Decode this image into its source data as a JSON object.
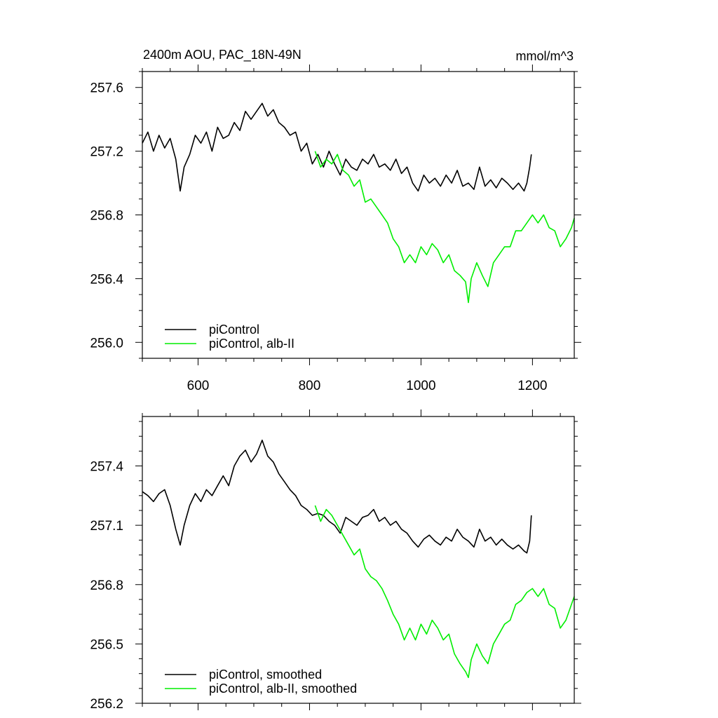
{
  "colors": {
    "control": "#000000",
    "alb": "#00ee00"
  },
  "chart_data": [
    {
      "type": "line",
      "title": "2400m AOU, PAC_18N-49N",
      "units": "mmol/m^3",
      "xlim": [
        500,
        1275
      ],
      "ylim": [
        255.9,
        257.7
      ],
      "xticks": [
        600,
        800,
        1000,
        1200
      ],
      "yticks": [
        256.0,
        256.4,
        256.8,
        257.2,
        257.6
      ],
      "ytick_labels": [
        "256.0",
        "256.4",
        "256.8",
        "257.2",
        "257.6"
      ],
      "show_xtick_labels": true,
      "legend_position": "bottom-left",
      "series": [
        {
          "name": "piControl",
          "color": "#000000",
          "x": [
            500,
            510,
            520,
            530,
            540,
            550,
            560,
            568,
            575,
            585,
            595,
            605,
            615,
            625,
            635,
            645,
            655,
            665,
            675,
            685,
            695,
            705,
            715,
            725,
            735,
            745,
            755,
            765,
            775,
            785,
            795,
            805,
            815,
            825,
            835,
            845,
            855,
            865,
            875,
            885,
            895,
            905,
            915,
            925,
            935,
            945,
            955,
            965,
            975,
            985,
            995,
            1005,
            1015,
            1025,
            1035,
            1045,
            1055,
            1065,
            1075,
            1085,
            1095,
            1105,
            1115,
            1125,
            1135,
            1145,
            1155,
            1165,
            1175,
            1185,
            1190,
            1195,
            1198
          ],
          "values": [
            257.25,
            257.32,
            257.2,
            257.3,
            257.22,
            257.28,
            257.15,
            256.95,
            257.1,
            257.18,
            257.3,
            257.25,
            257.32,
            257.2,
            257.35,
            257.28,
            257.3,
            257.38,
            257.33,
            257.45,
            257.4,
            257.45,
            257.5,
            257.42,
            257.46,
            257.38,
            257.35,
            257.3,
            257.32,
            257.2,
            257.25,
            257.12,
            257.18,
            257.1,
            257.2,
            257.12,
            257.05,
            257.15,
            257.1,
            257.08,
            257.15,
            257.12,
            257.18,
            257.1,
            257.12,
            257.08,
            257.15,
            257.06,
            257.1,
            257.0,
            256.95,
            257.05,
            257.0,
            257.03,
            256.98,
            257.05,
            257.0,
            257.08,
            256.98,
            257.0,
            256.96,
            257.1,
            256.98,
            257.02,
            256.97,
            257.03,
            257.0,
            256.96,
            257.0,
            256.95,
            257.0,
            257.1,
            257.18
          ]
        },
        {
          "name": "piControl, alb-II",
          "color": "#00ee00",
          "x": [
            810,
            820,
            830,
            840,
            850,
            860,
            870,
            880,
            890,
            900,
            910,
            920,
            930,
            940,
            950,
            960,
            970,
            980,
            990,
            1000,
            1010,
            1020,
            1030,
            1040,
            1050,
            1060,
            1070,
            1080,
            1085,
            1090,
            1100,
            1110,
            1120,
            1130,
            1140,
            1150,
            1160,
            1170,
            1180,
            1190,
            1200,
            1210,
            1220,
            1230,
            1240,
            1250,
            1260,
            1270,
            1275
          ],
          "values": [
            257.2,
            257.1,
            257.15,
            257.12,
            257.18,
            257.08,
            257.05,
            256.98,
            257.02,
            256.88,
            256.9,
            256.85,
            256.8,
            256.75,
            256.65,
            256.6,
            256.5,
            256.55,
            256.5,
            256.6,
            256.55,
            256.62,
            256.58,
            256.5,
            256.55,
            256.45,
            256.42,
            256.38,
            256.25,
            256.4,
            256.5,
            256.42,
            256.35,
            256.5,
            256.55,
            256.6,
            256.6,
            256.7,
            256.7,
            256.75,
            256.8,
            256.75,
            256.8,
            256.72,
            256.7,
            256.6,
            256.65,
            256.72,
            256.78
          ]
        }
      ]
    },
    {
      "type": "line",
      "title": "",
      "units": "",
      "xlim": [
        500,
        1275
      ],
      "ylim": [
        256.2,
        257.65
      ],
      "xticks": [
        600,
        800,
        1000,
        1200
      ],
      "yticks": [
        256.2,
        256.5,
        256.8,
        257.1,
        257.4
      ],
      "ytick_labels": [
        "256.2",
        "256.5",
        "256.8",
        "257.1",
        "257.4"
      ],
      "show_xtick_labels": false,
      "legend_position": "bottom-left",
      "series": [
        {
          "name": "piControl, smoothed",
          "color": "#000000",
          "x": [
            500,
            510,
            520,
            530,
            540,
            550,
            560,
            568,
            575,
            585,
            595,
            605,
            615,
            625,
            635,
            645,
            655,
            665,
            675,
            685,
            695,
            705,
            715,
            725,
            735,
            745,
            755,
            765,
            775,
            785,
            795,
            805,
            815,
            825,
            835,
            845,
            855,
            865,
            875,
            885,
            895,
            905,
            915,
            925,
            935,
            945,
            955,
            965,
            975,
            985,
            995,
            1005,
            1015,
            1025,
            1035,
            1045,
            1055,
            1065,
            1075,
            1085,
            1095,
            1105,
            1115,
            1125,
            1135,
            1145,
            1155,
            1165,
            1175,
            1185,
            1190,
            1195,
            1198
          ],
          "values": [
            257.27,
            257.25,
            257.22,
            257.26,
            257.28,
            257.2,
            257.08,
            257.0,
            257.1,
            257.2,
            257.26,
            257.22,
            257.28,
            257.25,
            257.3,
            257.35,
            257.3,
            257.4,
            257.45,
            257.48,
            257.42,
            257.46,
            257.53,
            257.45,
            257.42,
            257.36,
            257.32,
            257.28,
            257.25,
            257.2,
            257.18,
            257.15,
            257.16,
            257.15,
            257.12,
            257.1,
            257.06,
            257.14,
            257.12,
            257.1,
            257.14,
            257.15,
            257.18,
            257.12,
            257.14,
            257.1,
            257.12,
            257.08,
            257.06,
            257.02,
            256.99,
            257.03,
            257.05,
            257.02,
            257.0,
            257.04,
            257.02,
            257.08,
            257.04,
            257.02,
            256.99,
            257.08,
            257.02,
            257.04,
            257.0,
            257.03,
            257.0,
            256.98,
            257.0,
            256.97,
            256.96,
            257.02,
            257.15
          ]
        },
        {
          "name": "piControl, alb-II, smoothed",
          "color": "#00ee00",
          "x": [
            810,
            820,
            830,
            840,
            850,
            860,
            870,
            880,
            890,
            900,
            910,
            920,
            930,
            940,
            950,
            960,
            970,
            980,
            990,
            1000,
            1010,
            1020,
            1030,
            1040,
            1050,
            1060,
            1070,
            1080,
            1085,
            1090,
            1100,
            1110,
            1120,
            1130,
            1140,
            1150,
            1160,
            1170,
            1180,
            1190,
            1200,
            1210,
            1220,
            1230,
            1240,
            1250,
            1260,
            1270,
            1275
          ],
          "values": [
            257.2,
            257.12,
            257.18,
            257.15,
            257.1,
            257.05,
            257.0,
            256.95,
            256.98,
            256.88,
            256.84,
            256.82,
            256.78,
            256.72,
            256.65,
            256.6,
            256.52,
            256.58,
            256.52,
            256.6,
            256.55,
            256.62,
            256.58,
            256.52,
            256.55,
            256.45,
            256.4,
            256.36,
            256.33,
            256.42,
            256.5,
            256.44,
            256.4,
            256.5,
            256.55,
            256.6,
            256.62,
            256.7,
            256.72,
            256.76,
            256.78,
            256.74,
            256.78,
            256.7,
            256.68,
            256.58,
            256.62,
            256.7,
            256.74
          ]
        }
      ]
    }
  ]
}
